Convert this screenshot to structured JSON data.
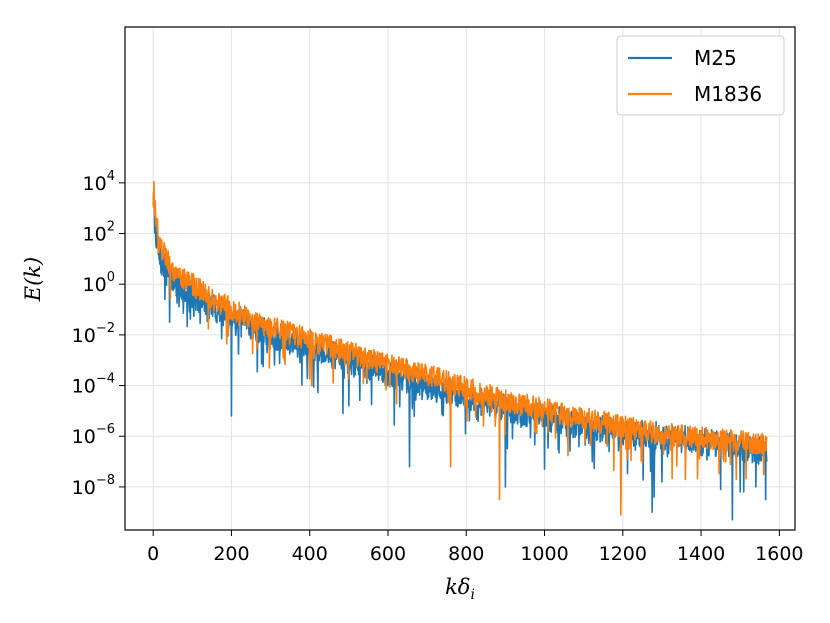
{
  "chart_data": {
    "type": "line",
    "xscale": "linear",
    "yscale": "log",
    "xlim": [
      -72,
      1640
    ],
    "ylim_exp": [
      -9.7,
      10.15
    ],
    "xlabel_base": "k",
    "xlabel_sym": "δ",
    "xlabel_sub": "i",
    "ylabel": "E(k)",
    "grid": true,
    "legend_position": "top-right",
    "x_ticks": [
      0,
      200,
      400,
      600,
      800,
      1000,
      1200,
      1400,
      1600
    ],
    "x_tick_labels": [
      "0",
      "200",
      "400",
      "600",
      "800",
      "1000",
      "1200",
      "1400",
      "1600"
    ],
    "y_ticks": [
      {
        "base": "10",
        "exp": "4",
        "value": 4
      },
      {
        "base": "10",
        "exp": "2",
        "value": 2
      },
      {
        "base": "10",
        "exp": "0",
        "value": 0
      },
      {
        "base": "10",
        "exp": "−2",
        "value": -2
      },
      {
        "base": "10",
        "exp": "−4",
        "value": -4
      },
      {
        "base": "10",
        "exp": "−6",
        "value": -6
      },
      {
        "base": "10",
        "exp": "−8",
        "value": -8
      }
    ],
    "x_max": 1568,
    "series": [
      {
        "name": "M25",
        "color": "#1f77b4",
        "trend_log10": [
          [
            0,
            3.4
          ],
          [
            5,
            2.3
          ],
          [
            15,
            1.0
          ],
          [
            50,
            0.1
          ],
          [
            150,
            -0.9
          ],
          [
            300,
            -2.0
          ],
          [
            500,
            -3.0
          ],
          [
            700,
            -4.0
          ],
          [
            900,
            -4.9
          ],
          [
            1100,
            -5.6
          ],
          [
            1300,
            -6.0
          ],
          [
            1568,
            -6.6
          ]
        ],
        "noise_amp": 0.55,
        "seed": 7,
        "dips": [
          [
            30,
            -0.6
          ],
          [
            42,
            -1.5
          ],
          [
            200,
            -5.2
          ],
          [
            485,
            -5.1
          ],
          [
            500,
            -4.8
          ],
          [
            655,
            -7.2
          ],
          [
            900,
            -8.0
          ],
          [
            1000,
            -7.3
          ],
          [
            1195,
            -8.4
          ],
          [
            1275,
            -9.0
          ],
          [
            1280,
            -8.4
          ],
          [
            1300,
            -7.8
          ],
          [
            1450,
            -8.1
          ],
          [
            1480,
            -9.3
          ],
          [
            1500,
            -8.2
          ],
          [
            1540,
            -8.0
          ],
          [
            1565,
            -8.5
          ]
        ]
      },
      {
        "name": "M1836",
        "color": "#ff7f0e",
        "trend_log10": [
          [
            0,
            3.6
          ],
          [
            5,
            3.0
          ],
          [
            15,
            1.6
          ],
          [
            50,
            0.6
          ],
          [
            150,
            -0.6
          ],
          [
            300,
            -1.7
          ],
          [
            500,
            -2.7
          ],
          [
            700,
            -3.6
          ],
          [
            900,
            -4.6
          ],
          [
            1100,
            -5.3
          ],
          [
            1300,
            -5.9
          ],
          [
            1568,
            -6.3
          ]
        ],
        "noise_amp": 0.45,
        "seed": 19,
        "peaks": [
          [
            2,
            4.05
          ],
          [
            10,
            2.1
          ],
          [
            120,
            0.2
          ],
          [
            350,
            -1.5
          ]
        ],
        "dips": [
          [
            760,
            -7.2
          ],
          [
            885,
            -8.5
          ],
          [
            1195,
            -9.1
          ],
          [
            1490,
            -7.7
          ],
          [
            1560,
            -7.5
          ]
        ]
      }
    ]
  }
}
